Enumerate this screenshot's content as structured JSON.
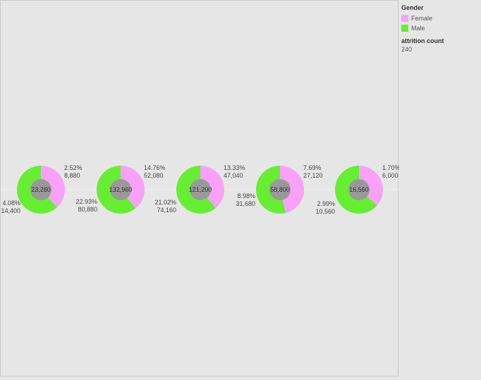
{
  "legend": {
    "title": "Gender",
    "items": [
      {
        "label": "Female",
        "color": "#f9a1f9"
      },
      {
        "label": "Male",
        "color": "#66ee33"
      }
    ]
  },
  "size_legend": {
    "title": "attrition count",
    "value": "240"
  },
  "chart_data": {
    "type": "pie",
    "donut": true,
    "colors": {
      "Female": "#f9a1f9",
      "Male": "#66ee33",
      "center": "#999999"
    },
    "charts": [
      {
        "total": "23,280",
        "female": {
          "pct": 2.52,
          "pct_label": "2.52%",
          "value_label": "8,880"
        },
        "male": {
          "pct": 4.08,
          "pct_label": "4.08%",
          "value_label": "14,400"
        }
      },
      {
        "total": "132,960",
        "female": {
          "pct": 14.76,
          "pct_label": "14.76%",
          "value_label": "52,080"
        },
        "male": {
          "pct": 22.93,
          "pct_label": "22.93%",
          "value_label": "80,880"
        }
      },
      {
        "total": "121,200",
        "female": {
          "pct": 13.33,
          "pct_label": "13.33%",
          "value_label": "47,040"
        },
        "male": {
          "pct": 21.02,
          "pct_label": "21.02%",
          "value_label": "74,160"
        }
      },
      {
        "total": "58,800",
        "female": {
          "pct": 7.69,
          "pct_label": "7.69%",
          "value_label": "27,120"
        },
        "male": {
          "pct": 8.98,
          "pct_label": "8.98%",
          "value_label": "31,680"
        }
      },
      {
        "total": "16,560",
        "female": {
          "pct": 1.7,
          "pct_label": "1.70%",
          "value_label": "6,000"
        },
        "male": {
          "pct": 2.99,
          "pct_label": "2.99%",
          "value_label": "10,560"
        }
      }
    ]
  }
}
